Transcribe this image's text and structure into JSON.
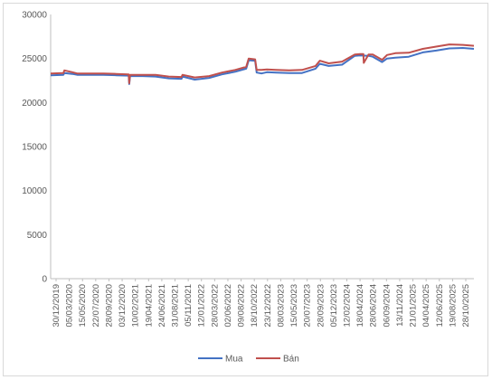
{
  "chart_data": {
    "type": "line",
    "title": "",
    "xlabel": "",
    "ylabel": "",
    "ylim": [
      0,
      30000
    ],
    "yticks": [
      0,
      5000,
      10000,
      15000,
      20000,
      25000,
      30000
    ],
    "ytick_labels": [
      "0",
      "5000",
      "10000",
      "15000",
      "20000",
      "25000",
      "30000"
    ],
    "xlim": [
      "2019-12-30",
      "2025-12-24"
    ],
    "xtick_labels": [
      "30/12/2019",
      "05/03/2020",
      "15/05/2020",
      "22/07/2020",
      "28/09/2020",
      "03/12/2020",
      "10/02/2021",
      "19/04/2021",
      "24/06/2021",
      "31/08/2021",
      "05/11/2021",
      "12/01/2022",
      "28/03/2022",
      "02/06/2022",
      "09/08/2022",
      "18/10/2022",
      "23/12/2022",
      "08/03/2023",
      "15/05/2023",
      "20/07/2023",
      "28/09/2023",
      "05/12/2023",
      "12/02/2024",
      "18/04/2024",
      "28/06/2024",
      "06/09/2024",
      "13/11/2024",
      "21/01/2025",
      "04/04/2025",
      "12/06/2025",
      "19/08/2025",
      "28/10/2025"
    ],
    "grid": false,
    "legend": "bottom",
    "colors": {
      "mua": "#4472c4",
      "ban": "#c0504d"
    },
    "series": [
      {
        "name": "Mua",
        "x": [
          "2019-12-30",
          "2020-03-05",
          "2020-03-10",
          "2020-04-20",
          "2020-05-15",
          "2020-07-22",
          "2020-09-28",
          "2020-12-03",
          "2021-02-05",
          "2021-02-08",
          "2021-02-12",
          "2021-02-15",
          "2021-04-19",
          "2021-06-24",
          "2021-08-31",
          "2021-11-05",
          "2021-11-10",
          "2022-01-12",
          "2022-03-28",
          "2022-06-02",
          "2022-08-09",
          "2022-10-05",
          "2022-10-18",
          "2022-11-20",
          "2022-11-28",
          "2022-12-23",
          "2023-01-20",
          "2023-03-08",
          "2023-05-15",
          "2023-07-20",
          "2023-09-28",
          "2023-10-20",
          "2023-12-05",
          "2024-02-12",
          "2024-04-18",
          "2024-05-15",
          "2024-06-28",
          "2024-07-20",
          "2024-09-06",
          "2024-10-01",
          "2024-11-13",
          "2025-01-21",
          "2025-04-04",
          "2025-06-12",
          "2025-08-19",
          "2025-10-28",
          "2025-12-24"
        ],
        "values": [
          23100,
          23150,
          23350,
          23250,
          23150,
          23150,
          23150,
          23100,
          23050,
          22100,
          23000,
          23000,
          23000,
          22950,
          22750,
          22700,
          22950,
          22600,
          22800,
          23200,
          23500,
          23850,
          24800,
          24750,
          23400,
          23300,
          23450,
          23400,
          23350,
          23350,
          23850,
          24400,
          24150,
          24300,
          25300,
          25350,
          25300,
          25200,
          24600,
          25000,
          25100,
          25200,
          25700,
          25900,
          26150,
          26200,
          26100
        ]
      },
      {
        "name": "Bán",
        "x": [
          "2019-12-30",
          "2020-03-05",
          "2020-03-10",
          "2020-04-20",
          "2020-05-15",
          "2020-07-22",
          "2020-09-28",
          "2020-12-03",
          "2021-02-05",
          "2021-02-08",
          "2021-02-12",
          "2021-02-15",
          "2021-04-19",
          "2021-06-24",
          "2021-08-31",
          "2021-11-05",
          "2021-11-10",
          "2022-01-12",
          "2022-03-28",
          "2022-06-02",
          "2022-08-09",
          "2022-10-05",
          "2022-10-18",
          "2022-11-20",
          "2022-11-28",
          "2022-12-23",
          "2023-01-20",
          "2023-03-08",
          "2023-05-15",
          "2023-07-20",
          "2023-09-28",
          "2023-10-20",
          "2023-12-05",
          "2024-02-12",
          "2024-04-18",
          "2024-05-15",
          "2024-06-01",
          "2024-06-03",
          "2024-06-28",
          "2024-07-20",
          "2024-09-06",
          "2024-10-01",
          "2024-11-13",
          "2025-01-21",
          "2025-04-04",
          "2025-06-12",
          "2025-08-19",
          "2025-10-28",
          "2025-12-24"
        ],
        "values": [
          23300,
          23350,
          23650,
          23450,
          23300,
          23300,
          23300,
          23250,
          23200,
          22200,
          23150,
          23150,
          23150,
          23150,
          22950,
          22900,
          23150,
          22850,
          23000,
          23400,
          23700,
          24050,
          25000,
          24900,
          23700,
          23700,
          23750,
          23700,
          23650,
          23700,
          24150,
          24750,
          24450,
          24650,
          25450,
          25500,
          25500,
          24500,
          25450,
          25450,
          24850,
          25400,
          25600,
          25650,
          26100,
          26350,
          26600,
          26550,
          26450
        ]
      }
    ]
  }
}
